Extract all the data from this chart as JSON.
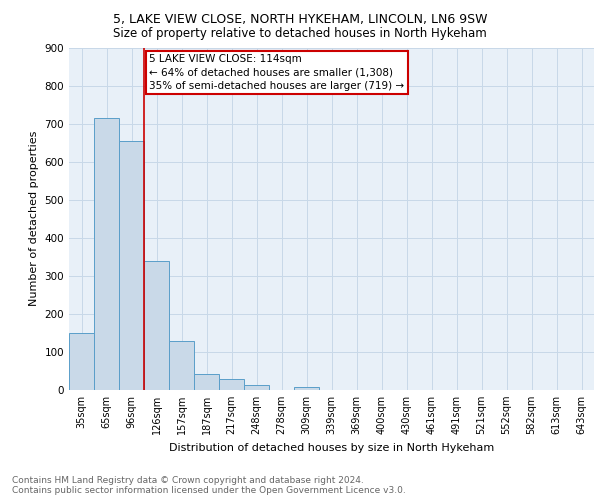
{
  "title1": "5, LAKE VIEW CLOSE, NORTH HYKEHAM, LINCOLN, LN6 9SW",
  "title2": "Size of property relative to detached houses in North Hykeham",
  "xlabel": "Distribution of detached houses by size in North Hykeham",
  "ylabel": "Number of detached properties",
  "footnote1": "Contains HM Land Registry data © Crown copyright and database right 2024.",
  "footnote2": "Contains public sector information licensed under the Open Government Licence v3.0.",
  "bin_labels": [
    "35sqm",
    "65sqm",
    "96sqm",
    "126sqm",
    "157sqm",
    "187sqm",
    "217sqm",
    "248sqm",
    "278sqm",
    "309sqm",
    "339sqm",
    "369sqm",
    "400sqm",
    "430sqm",
    "461sqm",
    "491sqm",
    "521sqm",
    "552sqm",
    "582sqm",
    "613sqm",
    "643sqm"
  ],
  "bar_heights": [
    150,
    715,
    655,
    340,
    130,
    42,
    30,
    12,
    0,
    8,
    0,
    0,
    0,
    0,
    0,
    0,
    0,
    0,
    0,
    0,
    0
  ],
  "bar_color": "#c9d9e8",
  "bar_edge_color": "#5a9ec9",
  "vline_color": "#cc0000",
  "vline_index": 2.5,
  "annotation_box_text": "5 LAKE VIEW CLOSE: 114sqm\n← 64% of detached houses are smaller (1,308)\n35% of semi-detached houses are larger (719) →",
  "annotation_box_color": "#cc0000",
  "annotation_box_bg": "#ffffff",
  "ylim": [
    0,
    900
  ],
  "yticks": [
    0,
    100,
    200,
    300,
    400,
    500,
    600,
    700,
    800,
    900
  ],
  "grid_color": "#c8d8e8",
  "bg_color": "#e8f0f8",
  "title1_fontsize": 9,
  "title2_fontsize": 8.5,
  "axis_fontsize": 8,
  "tick_fontsize": 7,
  "annotation_fontsize": 7.5,
  "footnote_fontsize": 6.5
}
